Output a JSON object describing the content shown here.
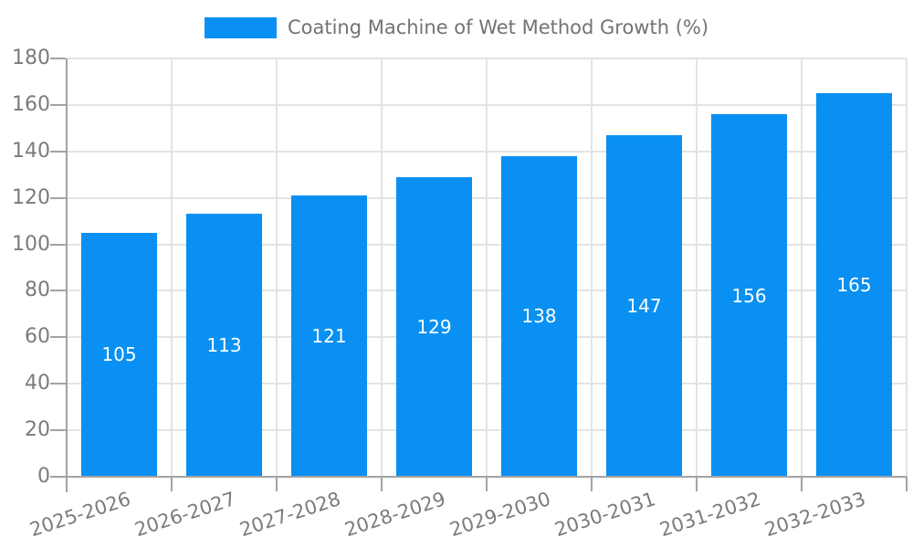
{
  "legend": {
    "label": "Coating Machine of Wet Method Growth (%)"
  },
  "chart_data": {
    "type": "bar",
    "title": "",
    "series_name": "Coating Machine of Wet Method Growth (%)",
    "categories": [
      "2025-2026",
      "2026-2027",
      "2027-2028",
      "2028-2029",
      "2029-2030",
      "2030-2031",
      "2031-2032",
      "2032-2033"
    ],
    "values": [
      105,
      113,
      121,
      129,
      138,
      147,
      156,
      165
    ],
    "ylim": [
      0,
      180
    ],
    "yticks": [
      0,
      20,
      40,
      60,
      80,
      100,
      120,
      140,
      160,
      180
    ],
    "grid": "both",
    "legend_position": "top-center",
    "x_label_rotation_deg": -18,
    "bar_value_labels_position": "center-inside",
    "colors": {
      "bar": "#0990f2",
      "bar_label": "#ffffff",
      "grid": "#e3e3e3",
      "axis": "#a3a3a3",
      "tick_label": "#7b7b7b",
      "legend_text": "#737373",
      "background": "#ffffff"
    }
  }
}
